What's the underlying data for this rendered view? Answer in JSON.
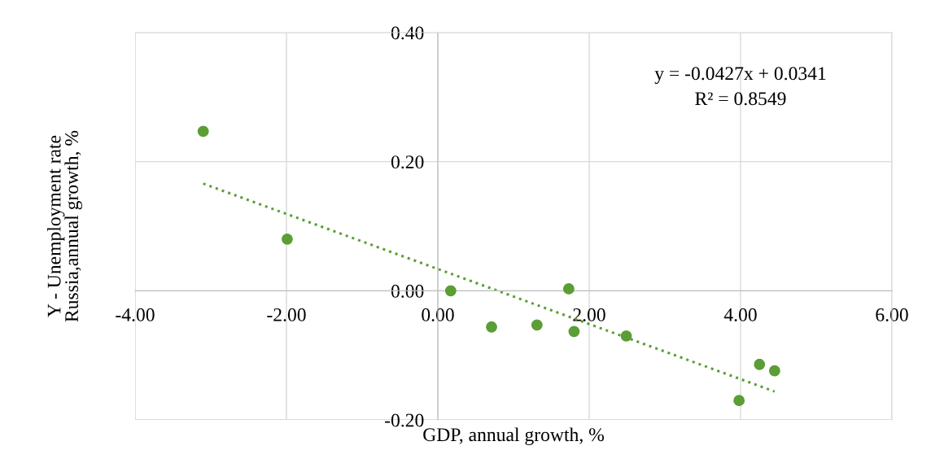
{
  "chart_data": {
    "type": "scatter",
    "xlabel": "GDP, annual growth, %",
    "ylabel": "Y - Unemployment rate\nRussia,annual growth, %",
    "xlim": [
      -4,
      6
    ],
    "xticks": [
      {
        "value": -4,
        "label": "-4.00"
      },
      {
        "value": -2,
        "label": "-2.00"
      },
      {
        "value": 0,
        "label": "0.00"
      },
      {
        "value": 2,
        "label": "2.00"
      },
      {
        "value": 4,
        "label": "4.00"
      },
      {
        "value": 6,
        "label": "6.00"
      }
    ],
    "ylim": [
      -0.2,
      0.4
    ],
    "yticks": [
      {
        "value": -0.2,
        "label": "-0.20"
      },
      {
        "value": 0,
        "label": "0.00"
      },
      {
        "value": 0.2,
        "label": "0.20"
      },
      {
        "value": 0.4,
        "label": "0.40"
      }
    ],
    "grid": true,
    "legend": false,
    "series": [
      {
        "color": "#5b9e35",
        "marker": "circle",
        "x": [
          -3.1,
          -1.99,
          0.17,
          0.71,
          1.31,
          1.73,
          1.8,
          2.49,
          3.98,
          4.25,
          4.45
        ],
        "values": [
          0.247,
          0.08,
          0.0,
          -0.056,
          -0.053,
          0.003,
          -0.063,
          -0.07,
          -0.17,
          -0.114,
          -0.124
        ]
      },
      {
        "type": "line",
        "color": "#5b9e35",
        "marker": "none",
        "line_style": "dotted",
        "x": [
          -3.1,
          4.45
        ],
        "values": [
          0.166,
          -0.156
        ]
      }
    ],
    "annotations": [
      "y = -0.0427x + 0.0341",
      "R² = 0.8549"
    ]
  }
}
